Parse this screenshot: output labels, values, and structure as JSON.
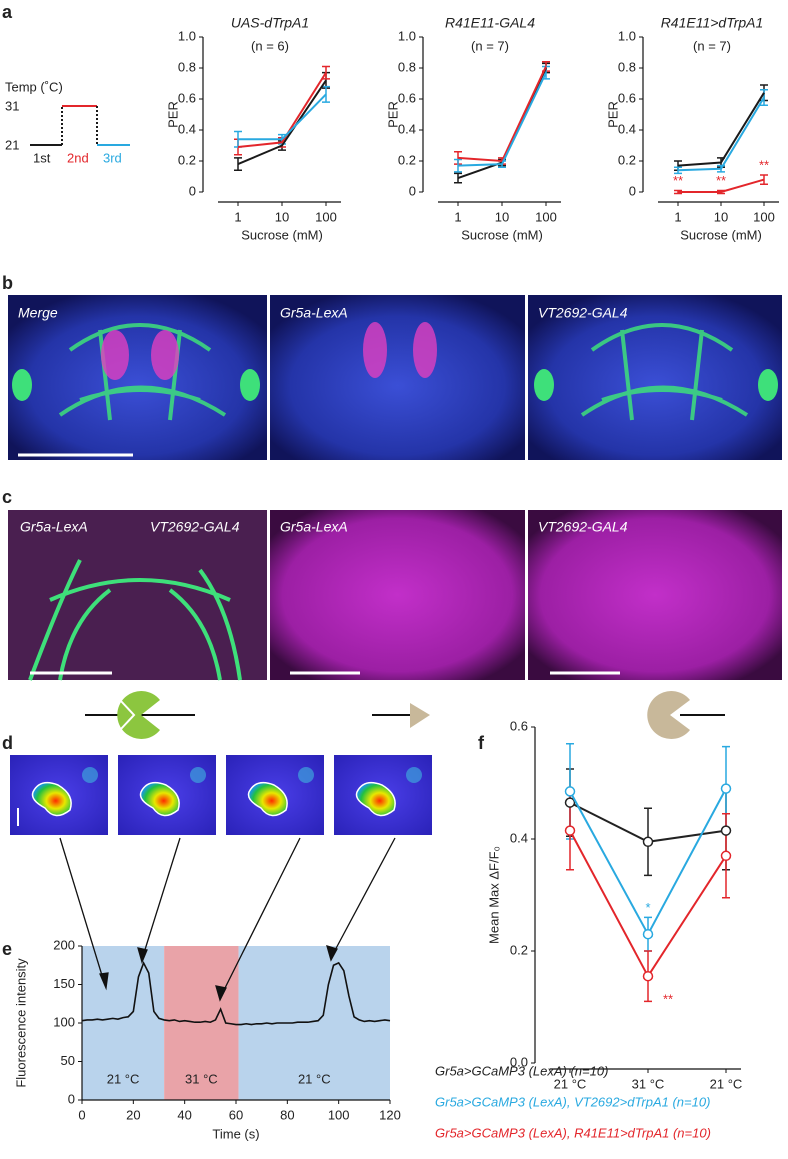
{
  "panel_labels": [
    "a",
    "b",
    "c",
    "d",
    "e",
    "f"
  ],
  "schematic": {
    "title": "Temp (˚C)",
    "levels": [
      31,
      21
    ],
    "phases": [
      "1st",
      "2nd",
      "3rd"
    ]
  },
  "images_b": [
    "Merge",
    "Gr5a-LexA",
    "VT2692-GAL4"
  ],
  "images_c": [
    "Gr5a-LexA",
    "VT2692-GAL4",
    "Gr5a-LexA",
    "VT2692-GAL4"
  ],
  "chart_data": [
    {
      "type": "line",
      "title": "UAS-dTrpA1",
      "subtitle": "(n = 6)",
      "xlabel": "Sucrose (mM)",
      "ylabel": "PER",
      "categories": [
        "1",
        "10",
        "100"
      ],
      "ylim": [
        0,
        1
      ],
      "yticks": [
        0,
        0.2,
        0.4,
        0.6,
        0.8,
        {
          "value": 1,
          "label": "1.0"
        }
      ],
      "series": [
        {
          "color": "#1a1a1a",
          "values": [
            0.18,
            0.3,
            0.72
          ],
          "errors": [
            0.04,
            0.03,
            0.05
          ]
        },
        {
          "color": "#e3262b",
          "values": [
            0.29,
            0.32,
            0.77
          ],
          "errors": [
            0.05,
            0.03,
            0.04
          ]
        },
        {
          "color": "#29a9e0",
          "values": [
            0.34,
            0.34,
            0.63
          ],
          "errors": [
            0.05,
            0.03,
            0.05
          ]
        }
      ]
    },
    {
      "type": "line",
      "title": "R41E11-GAL4",
      "subtitle": "(n = 7)",
      "xlabel": "Sucrose (mM)",
      "ylabel": "PER",
      "categories": [
        "1",
        "10",
        "100"
      ],
      "ylim": [
        0,
        1
      ],
      "yticks": [
        0,
        0.2,
        0.4,
        0.6,
        0.8,
        {
          "value": 1,
          "label": "1.0"
        }
      ],
      "series": [
        {
          "color": "#1a1a1a",
          "values": [
            0.09,
            0.19,
            0.8
          ],
          "errors": [
            0.03,
            0.02,
            0.03
          ]
        },
        {
          "color": "#e3262b",
          "values": [
            0.22,
            0.2,
            0.81
          ],
          "errors": [
            0.04,
            0.02,
            0.03
          ]
        },
        {
          "color": "#29a9e0",
          "values": [
            0.17,
            0.18,
            0.77
          ],
          "errors": [
            0.04,
            0.02,
            0.04
          ]
        }
      ]
    },
    {
      "type": "line",
      "title": "R41E11>dTrpA1",
      "subtitle": "(n = 7)",
      "xlabel": "Sucrose (mM)",
      "ylabel": "PER",
      "categories": [
        "1",
        "10",
        "100"
      ],
      "ylim": [
        0,
        1
      ],
      "yticks": [
        0,
        0.2,
        0.4,
        0.6,
        0.8,
        {
          "value": 1,
          "label": "1.0"
        }
      ],
      "series": [
        {
          "color": "#1a1a1a",
          "values": [
            0.17,
            0.19,
            0.64
          ],
          "errors": [
            0.03,
            0.03,
            0.05
          ]
        },
        {
          "color": "#e3262b",
          "values": [
            0,
            0,
            0.08
          ],
          "errors": [
            0.01,
            0.01,
            0.03
          ]
        },
        {
          "color": "#29a9e0",
          "values": [
            0.14,
            0.15,
            0.61
          ],
          "errors": [
            0.02,
            0.02,
            0.05
          ]
        }
      ],
      "annotations": [
        {
          "text": "**",
          "category": "1",
          "color": "#e3262b"
        },
        {
          "text": "**",
          "category": "10",
          "color": "#e3262b"
        },
        {
          "text": "**",
          "category": "100",
          "color": "#e3262b"
        }
      ]
    },
    {
      "type": "trace",
      "xlabel": "Time (s)",
      "ylabel": "Fluorescence intensity",
      "xlim": [
        0,
        120
      ],
      "xticks": [
        0,
        20,
        40,
        60,
        80,
        100,
        120
      ],
      "ylim": [
        0,
        200
      ],
      "yticks": [
        0,
        50,
        100,
        150,
        200
      ],
      "regions": [
        {
          "from": 0,
          "to": 32,
          "color": "#b9d3ec",
          "label": "21 °C"
        },
        {
          "from": 32,
          "to": 61,
          "color": "#e9a3a8",
          "label": "31 °C"
        },
        {
          "from": 61,
          "to": 120,
          "color": "#b9d3ec",
          "label": "21 °C"
        }
      ],
      "color": "#111111",
      "x": [
        0,
        2,
        4,
        6,
        8,
        10,
        12,
        14,
        16,
        18,
        20,
        22,
        24,
        26,
        28,
        30,
        32,
        34,
        36,
        38,
        40,
        42,
        44,
        46,
        48,
        50,
        52,
        54,
        56,
        58,
        60,
        62,
        64,
        66,
        68,
        70,
        72,
        74,
        76,
        78,
        80,
        82,
        84,
        86,
        88,
        90,
        92,
        94,
        96,
        98,
        100,
        102,
        104,
        106,
        108,
        110,
        112,
        114,
        116,
        118,
        120
      ],
      "values": [
        103,
        104,
        104,
        105,
        104,
        105,
        106,
        105,
        107,
        108,
        115,
        160,
        178,
        165,
        115,
        106,
        104,
        103,
        104,
        102,
        103,
        102,
        101,
        101,
        102,
        101,
        104,
        118,
        100,
        99,
        98,
        98,
        99,
        98,
        99,
        99,
        100,
        99,
        100,
        100,
        100,
        100,
        101,
        101,
        101,
        102,
        103,
        110,
        150,
        175,
        178,
        168,
        135,
        108,
        104,
        102,
        103,
        102,
        103,
        104,
        103
      ]
    },
    {
      "type": "line",
      "ylabel": "Mean Max ΔF/F₀",
      "categories": [
        "21 °C",
        "31 °C",
        "21 °C"
      ],
      "ylim": [
        0,
        0.6
      ],
      "yticks": [
        {
          "value": 0,
          "label": "0.0"
        },
        0.2,
        0.4,
        0.6
      ],
      "series": [
        {
          "name": "Gr5a>GCaMP3 (LexA) (n=10)",
          "color": "#222222",
          "values": [
            0.465,
            0.395,
            0.415
          ],
          "errors": [
            0.06,
            0.06,
            0.07
          ]
        },
        {
          "name": "Gr5a>GCaMP3 (LexA), VT2692>dTrpA1 (n=10)",
          "color": "#29a9e0",
          "values": [
            0.485,
            0.23,
            0.49
          ],
          "errors": [
            0.085,
            0.03,
            0.075
          ]
        },
        {
          "name": "Gr5a>GCaMP3 (LexA), R41E11>dTrpA1 (n=10)",
          "color": "#e3262b",
          "values": [
            0.415,
            0.155,
            0.37
          ],
          "errors": [
            0.07,
            0.045,
            0.075
          ]
        }
      ],
      "annotations": [
        {
          "text": "*",
          "category": "31 °C",
          "color": "#29a9e0"
        },
        {
          "text": "**",
          "category": "31 °C",
          "color": "#e3262b"
        }
      ]
    }
  ]
}
